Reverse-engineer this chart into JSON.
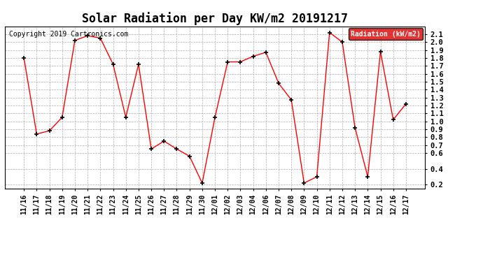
{
  "title": "Solar Radiation per Day KW/m2 20191217",
  "copyright": "Copyright 2019 Cartronics.com",
  "legend_label": "Radiation (kW/m2)",
  "dates": [
    "11/16",
    "11/17",
    "11/18",
    "11/19",
    "11/20",
    "11/21",
    "11/22",
    "11/23",
    "11/24",
    "11/25",
    "11/26",
    "11/27",
    "11/28",
    "11/29",
    "11/30",
    "12/01",
    "12/02",
    "12/03",
    "12/04",
    "12/06",
    "12/07",
    "12/08",
    "12/09",
    "12/10",
    "12/11",
    "12/12",
    "12/13",
    "12/14",
    "12/15",
    "12/16",
    "12/17"
  ],
  "values": [
    1.8,
    0.84,
    0.88,
    1.05,
    2.02,
    2.08,
    2.05,
    1.72,
    1.05,
    1.72,
    0.65,
    0.75,
    0.65,
    0.56,
    0.22,
    1.05,
    1.75,
    1.75,
    1.82,
    1.87,
    1.48,
    1.27,
    0.22,
    0.3,
    2.12,
    2.0,
    0.92,
    0.3,
    1.88,
    1.02,
    1.22
  ],
  "line_color": "red",
  "marker_color": "black",
  "marker": "+",
  "ylim_min": 0.15,
  "ylim_max": 2.2,
  "yticks": [
    0.2,
    0.4,
    0.6,
    0.7,
    0.8,
    0.9,
    1.0,
    1.1,
    1.2,
    1.3,
    1.4,
    1.5,
    1.6,
    1.7,
    1.8,
    1.9,
    2.0,
    2.1
  ],
  "bg_color": "#ffffff",
  "grid_color": "#999999",
  "title_fontsize": 12,
  "copyright_fontsize": 7,
  "tick_fontsize": 7,
  "legend_bg": "#dd0000",
  "legend_text_color": "#ffffff"
}
